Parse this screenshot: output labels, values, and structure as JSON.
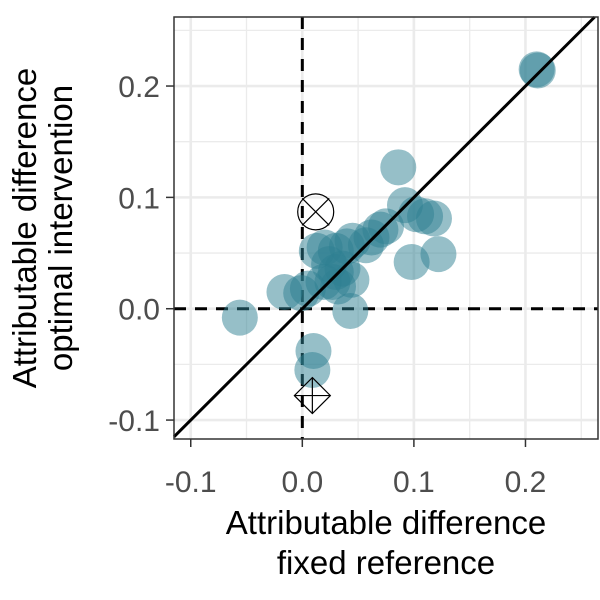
{
  "chart_data": {
    "type": "scatter",
    "title": "",
    "xlabel_lines": [
      "Attributable difference",
      "fixed reference"
    ],
    "ylabel_lines": [
      "Attributable difference",
      "optimal intervention"
    ],
    "xlim": [
      -0.115,
      0.265
    ],
    "ylim": [
      -0.117,
      0.262
    ],
    "x_ticks": [
      -0.1,
      0.0,
      0.1,
      0.2
    ],
    "x_tick_labels": [
      "-0.1",
      "0.0",
      "0.1",
      "0.2"
    ],
    "y_ticks": [
      -0.1,
      0.0,
      0.1,
      0.2
    ],
    "y_tick_labels": [
      "-0.1",
      "0.0",
      "0.1",
      "0.2"
    ],
    "grid": true,
    "reference_lines": {
      "vertical_x": 0,
      "horizontal_y": 0,
      "identity_line": true
    },
    "point_color": "#2e7f91",
    "points": [
      {
        "x": 0.21,
        "y": 0.215
      },
      {
        "x": 0.211,
        "y": 0.214
      },
      {
        "x": 0.086,
        "y": 0.127
      },
      {
        "x": 0.092,
        "y": 0.093
      },
      {
        "x": 0.102,
        "y": 0.085
      },
      {
        "x": 0.11,
        "y": 0.083
      },
      {
        "x": 0.118,
        "y": 0.081
      },
      {
        "x": 0.098,
        "y": 0.042
      },
      {
        "x": 0.122,
        "y": 0.049
      },
      {
        "x": 0.075,
        "y": 0.074
      },
      {
        "x": 0.07,
        "y": 0.071
      },
      {
        "x": 0.062,
        "y": 0.064
      },
      {
        "x": 0.057,
        "y": 0.057
      },
      {
        "x": 0.045,
        "y": 0.061
      },
      {
        "x": 0.04,
        "y": 0.056
      },
      {
        "x": 0.03,
        "y": 0.052
      },
      {
        "x": 0.02,
        "y": 0.055
      },
      {
        "x": 0.013,
        "y": 0.052
      },
      {
        "x": 0.024,
        "y": 0.04
      },
      {
        "x": 0.03,
        "y": 0.033
      },
      {
        "x": 0.036,
        "y": 0.036
      },
      {
        "x": 0.044,
        "y": 0.026
      },
      {
        "x": 0.032,
        "y": 0.02
      },
      {
        "x": 0.027,
        "y": 0.024
      },
      {
        "x": 0.019,
        "y": 0.024
      },
      {
        "x": 0.005,
        "y": 0.018
      },
      {
        "x": -0.001,
        "y": 0.014
      },
      {
        "x": -0.016,
        "y": 0.015
      },
      {
        "x": 0.043,
        "y": -0.002
      },
      {
        "x": -0.056,
        "y": -0.008
      },
      {
        "x": 0.01,
        "y": -0.038
      },
      {
        "x": 0.009,
        "y": -0.055
      }
    ],
    "special_markers": [
      {
        "shape": "circle-cross",
        "x": 0.012,
        "y": 0.087
      },
      {
        "shape": "diamond-cross",
        "x": 0.009,
        "y": -0.078
      }
    ]
  }
}
